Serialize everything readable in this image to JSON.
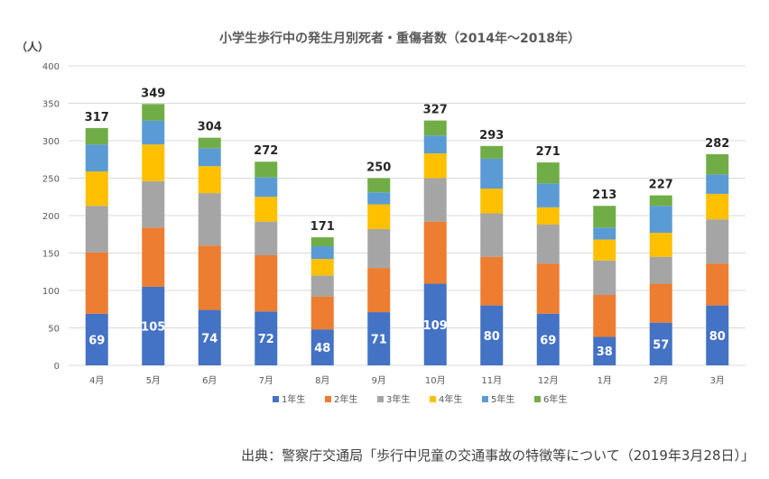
{
  "source": "出典：警察庁交通局「歩行中児童の交通事故の特徴等について（2019年3月28日）」",
  "chart_data": {
    "type": "bar",
    "stacked": true,
    "title": "小学生歩行中の発生月別死者・重傷者数（2014年〜2018年）",
    "ylabel": "（人）",
    "xlabel": "",
    "ylim": [
      0,
      400
    ],
    "yticks": [
      0,
      50,
      100,
      150,
      200,
      250,
      300,
      350,
      400
    ],
    "grid": true,
    "legend": "bottom",
    "categories": [
      "4月",
      "5月",
      "6月",
      "7月",
      "8月",
      "9月",
      "10月",
      "11月",
      "12月",
      "1月",
      "2月",
      "3月"
    ],
    "totals": [
      317,
      349,
      304,
      272,
      171,
      250,
      327,
      293,
      271,
      213,
      227,
      282
    ],
    "series": [
      {
        "name": "1年生",
        "color": "#4472c4",
        "values": [
          69,
          105,
          74,
          72,
          48,
          71,
          109,
          80,
          69,
          38,
          57,
          80
        ],
        "show_labels": true
      },
      {
        "name": "2年生",
        "color": "#ed7d31",
        "values": [
          82,
          79,
          86,
          75,
          44,
          59,
          83,
          65,
          67,
          56,
          52,
          56
        ]
      },
      {
        "name": "3年生",
        "color": "#a5a5a5",
        "values": [
          62,
          62,
          70,
          45,
          28,
          52,
          58,
          58,
          52,
          46,
          36,
          59
        ]
      },
      {
        "name": "4年生",
        "color": "#ffc000",
        "values": [
          46,
          49,
          36,
          33,
          22,
          33,
          33,
          33,
          23,
          28,
          32,
          34
        ]
      },
      {
        "name": "5年生",
        "color": "#5b9bd5",
        "values": [
          36,
          32,
          24,
          26,
          17,
          16,
          24,
          40,
          32,
          16,
          36,
          26
        ]
      },
      {
        "name": "6年生",
        "color": "#70ad47",
        "values": [
          22,
          22,
          14,
          21,
          12,
          19,
          20,
          17,
          28,
          29,
          14,
          27
        ]
      }
    ]
  }
}
